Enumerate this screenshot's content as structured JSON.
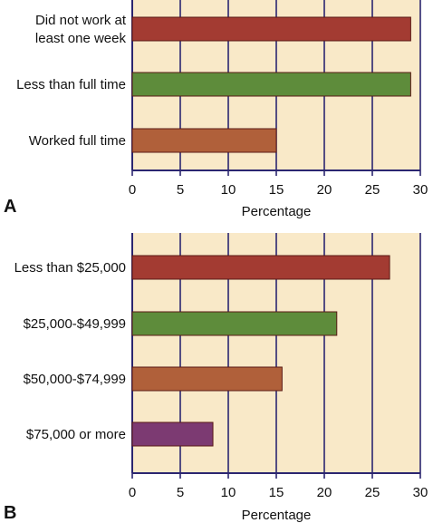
{
  "chart_data": [
    {
      "panel": "A",
      "type": "bar",
      "orientation": "horizontal",
      "categories": [
        [
          "Did not work at",
          "least one week"
        ],
        "Less than full time",
        "Worked full time"
      ],
      "values": [
        29,
        29,
        15
      ],
      "colors": [
        "#a33b32",
        "#5e8c3b",
        "#b0603a"
      ],
      "xlabel": "Percentage",
      "xlim": [
        0,
        30
      ],
      "xticks": [
        "0",
        "5",
        "10",
        "15",
        "20",
        "25",
        "30"
      ],
      "grid": "vertical",
      "background": "#f9e9c8",
      "grid_color": "#2b2670"
    },
    {
      "panel": "B",
      "type": "bar",
      "orientation": "horizontal",
      "categories": [
        "Less than $25,000",
        "$25,000-$49,999",
        "$50,000-$74,999",
        "$75,000 or more"
      ],
      "values": [
        26.8,
        21.3,
        15.6,
        8.4
      ],
      "colors": [
        "#a33b32",
        "#5e8c3b",
        "#b0603a",
        "#7c3a72"
      ],
      "xlabel": "Percentage",
      "xlim": [
        0,
        30
      ],
      "xticks": [
        "0",
        "5",
        "10",
        "15",
        "20",
        "25",
        "30"
      ],
      "grid": "vertical",
      "background": "#f9e9c8",
      "grid_color": "#2b2670"
    }
  ]
}
